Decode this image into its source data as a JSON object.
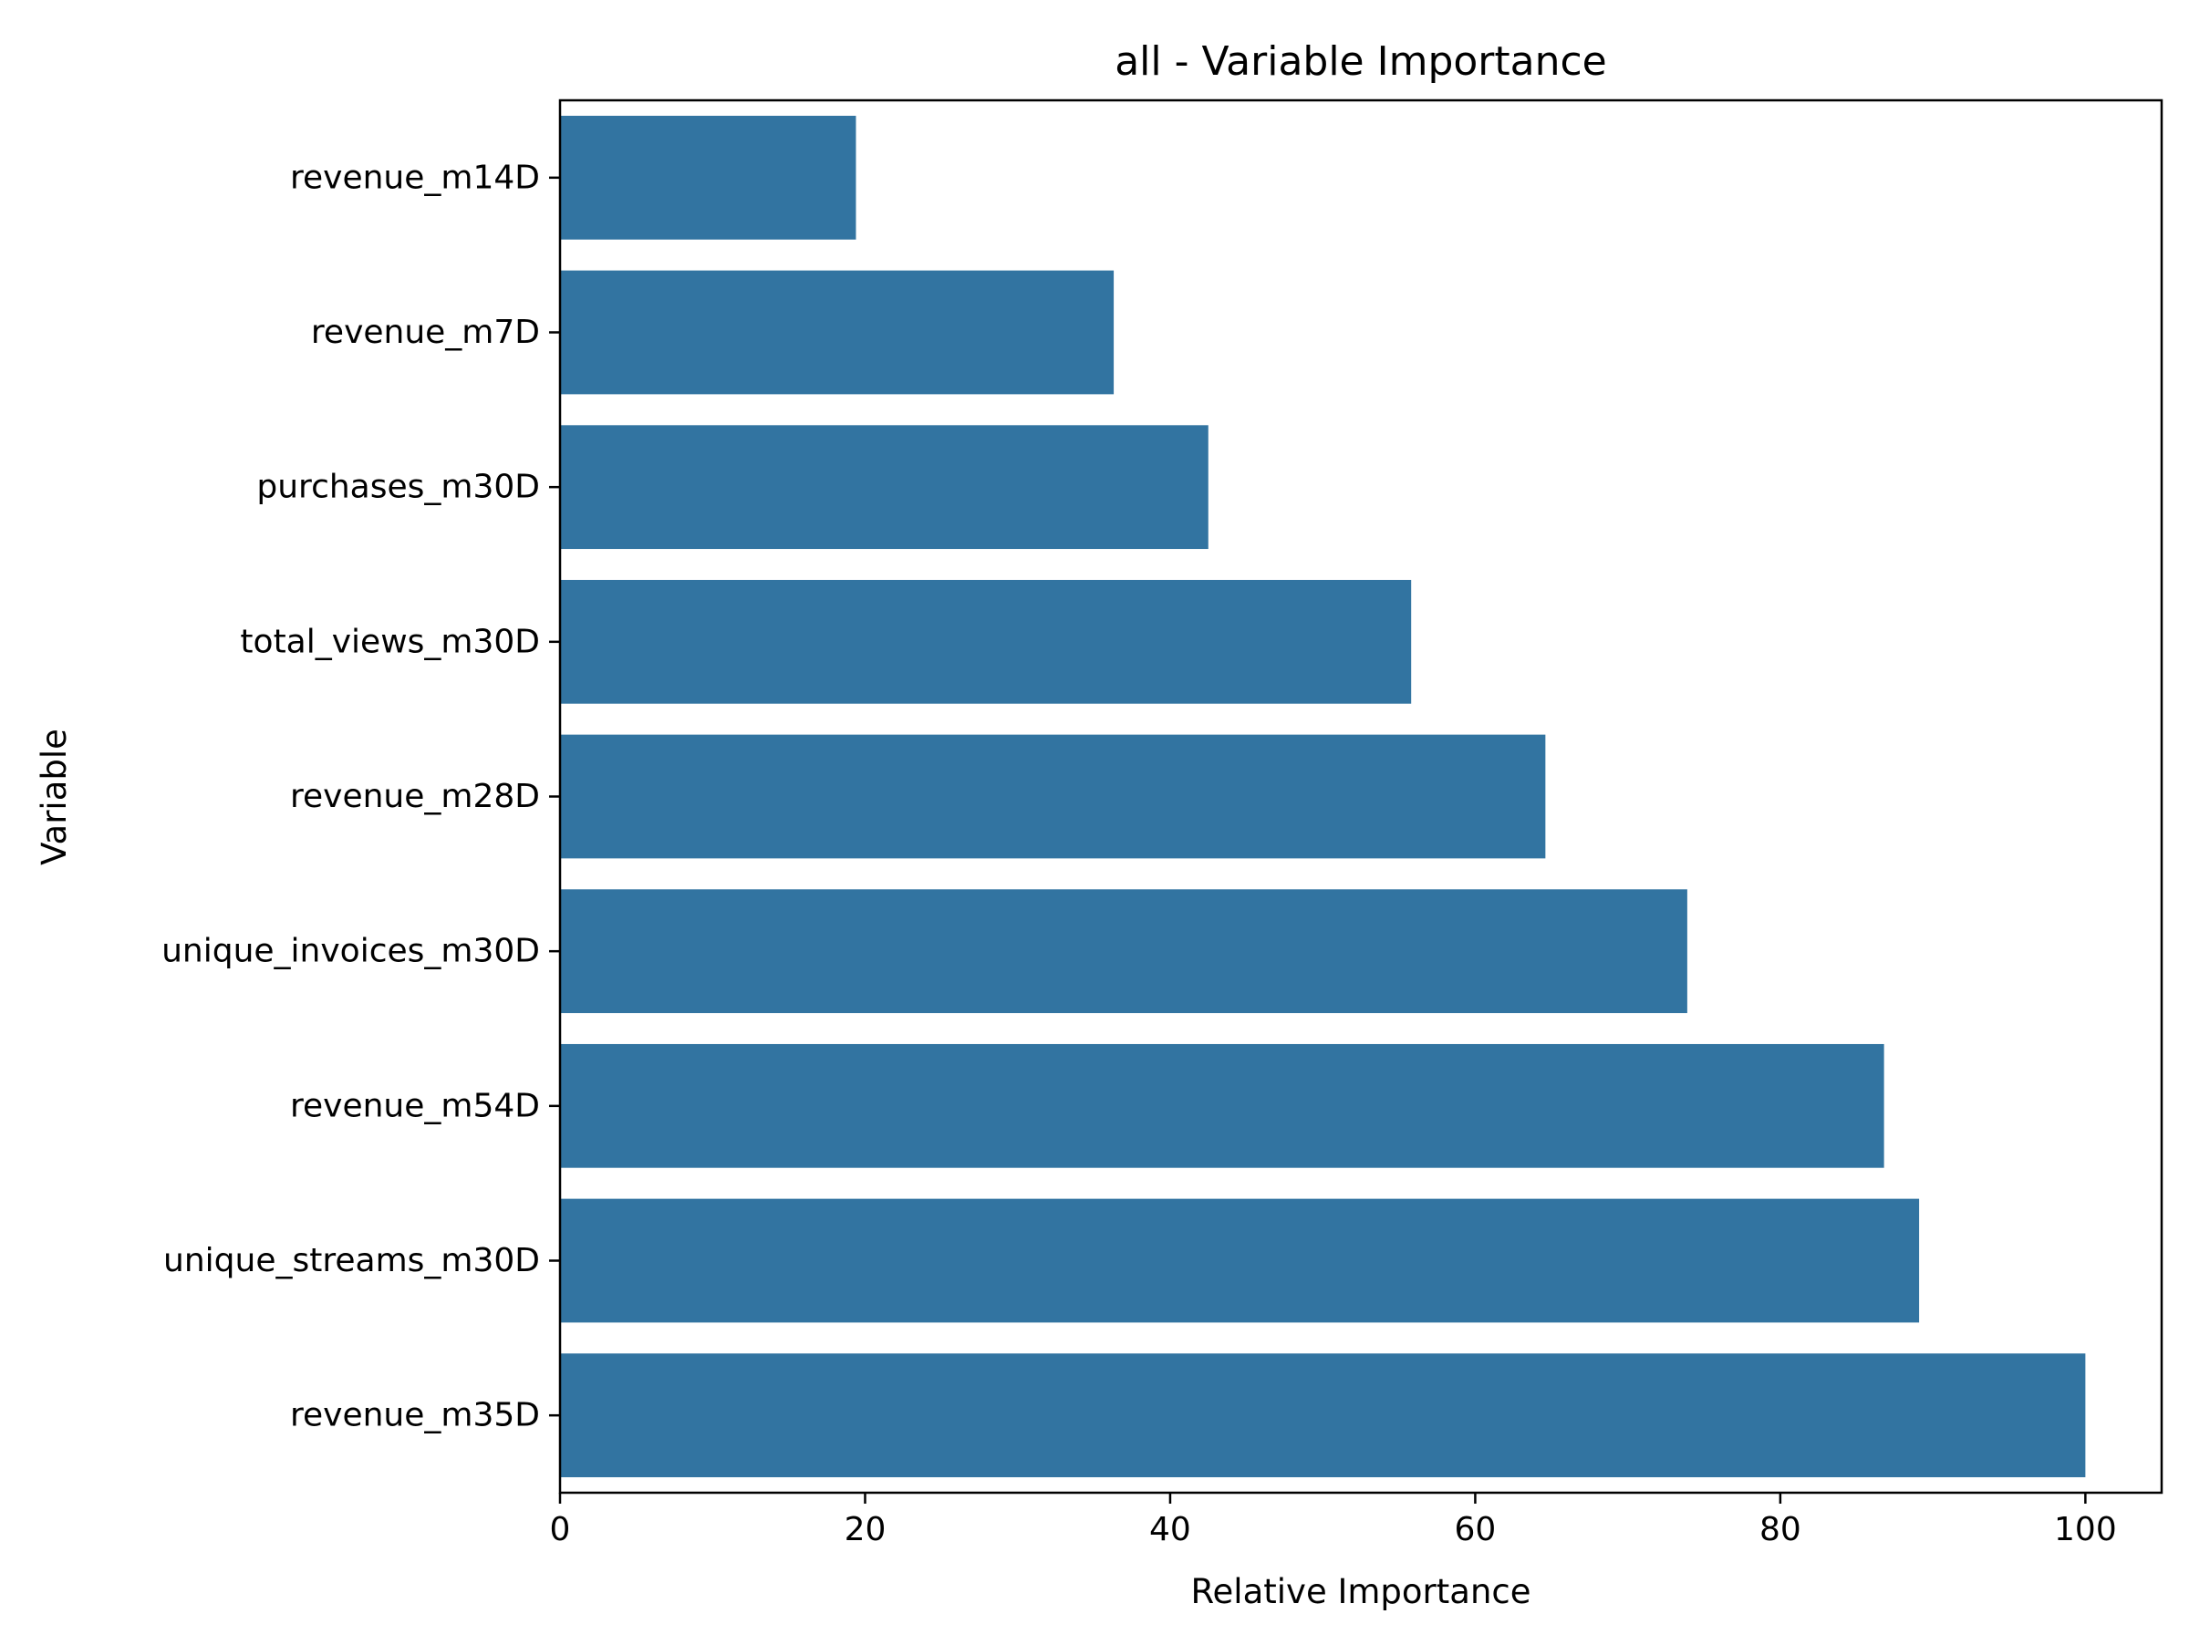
{
  "chart_data": {
    "type": "bar",
    "orientation": "horizontal",
    "title": "all - Variable Importance",
    "xlabel": "Relative Importance",
    "ylabel": "Variable",
    "categories": [
      "revenue_m14D",
      "revenue_m7D",
      "purchases_m30D",
      "total_views_m30D",
      "revenue_m28D",
      "unique_invoices_m30D",
      "revenue_m54D",
      "unique_streams_m30D",
      "revenue_m35D"
    ],
    "values": [
      19.4,
      36.3,
      42.5,
      55.8,
      64.6,
      73.9,
      86.8,
      89.1,
      100
    ],
    "xlim": [
      0,
      105
    ],
    "xticks": [
      0,
      20,
      40,
      60,
      80,
      100
    ],
    "grid": false,
    "legend": "none",
    "bar_color": "#3274a1"
  }
}
